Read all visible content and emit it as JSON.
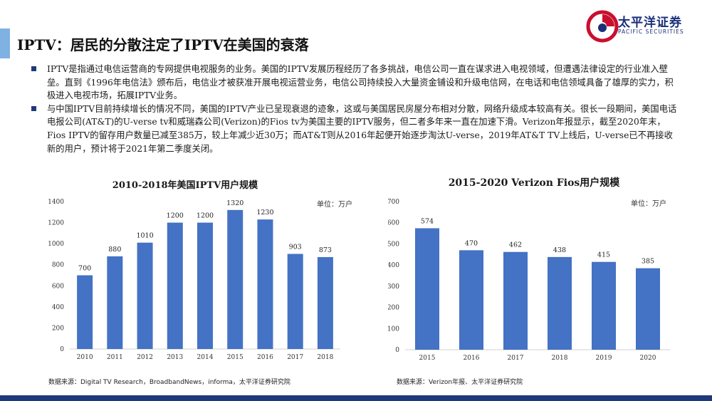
{
  "header": {
    "title": "IPTV：居民的分散注定了IPTV在美国的衰落",
    "logo_cn": "太平洋证券",
    "logo_en": "PACIFIC SECURITIES"
  },
  "bullets": [
    "IPTV是指通过电信运营商的专网提供电视服务的业务。美国的IPTV发展历程经历了各多挑战，电信公司一直在谋求进入电视领域，但遭遇法律设定的行业准入壁垒。直到《1996年电信法》颁布后，电信业才被获准开展电视运营业务，电信公司持续投入大量资金铺设和升级电信网，在电话和电信领域具备了雄厚的实力，积极进入电视市场，拓展IPTV业务。",
    "与中国IPTV目前持续增长的情况不同，美国的IPTV产业已呈现衰退的迹象，这或与美国居民房屋分布相对分散，网络升级成本较高有关。很长一段期间，美国电话电报公司(AT&T)的U-verse tv和威瑞森公司(Verizon)的Fios tv为美国主要的IPTV服务，但二者多年来一直在加速下滑。Verizon年报显示，截至2020年末，Fios IPTV的留存用户数量已减至385万，较上年减少近30万；而AT&T则从2016年起便开始逐步淘汰U-verse，2019年AT&T TV上线后，U-verse已不再接收新的用户，预计将于2021年第二季度关闭。"
  ],
  "charts": {
    "left": {
      "unit": "单位：万户",
      "source": "数据来源：Digital TV Research，BroadbandNews，informa，太平洋证券研究院"
    },
    "right": {
      "unit": "单位：万户",
      "source": "数据来源：Verizon年报、太平洋证券研究院"
    }
  },
  "chart_data": [
    {
      "type": "bar",
      "title": "2010-2018年美国IPTV用户规模",
      "categories": [
        "2010",
        "2011",
        "2012",
        "2013",
        "2014",
        "2015",
        "2016",
        "2017",
        "2018"
      ],
      "values": [
        700,
        880,
        1010,
        1200,
        1200,
        1320,
        1230,
        903,
        873
      ],
      "yticks": [
        0,
        200,
        400,
        600,
        800,
        1000,
        1200,
        1400
      ],
      "ylim": [
        0,
        1400
      ],
      "xlabel": "",
      "ylabel": "",
      "color": "#4472c4"
    },
    {
      "type": "bar",
      "title": "2015-2020 Verizon Fios用户规模",
      "categories": [
        "2015",
        "2016",
        "2017",
        "2018",
        "2019",
        "2020"
      ],
      "values": [
        574,
        470,
        462,
        438,
        415,
        385
      ],
      "yticks": [
        0,
        100,
        200,
        300,
        400,
        500,
        600,
        700
      ],
      "ylim": [
        0,
        700
      ],
      "xlabel": "",
      "ylabel": "",
      "color": "#4472c4"
    }
  ]
}
